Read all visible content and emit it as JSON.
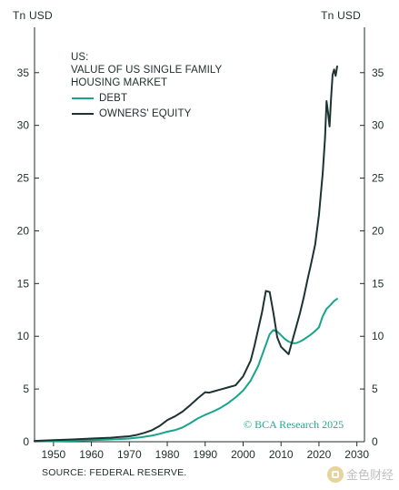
{
  "units": {
    "left": "Tn USD",
    "right": "Tn USD"
  },
  "legend": {
    "title_lines": [
      "US:",
      "VALUE OF US SINGLE FAMILY",
      "HOUSING MARKET"
    ],
    "items": [
      "DEBT",
      "OWNERS' EQUITY"
    ]
  },
  "credit": "© BCA Research 2025",
  "source": "SOURCE: FEDERAL RESERVE.",
  "watermark": "金色财经",
  "colors": {
    "debt": "#17a58b",
    "equity": "#1c3331",
    "axis": "#1f2d2a",
    "credit": "#21a98f"
  },
  "chart_data": {
    "type": "line",
    "x_ticks": [
      1950,
      1960,
      1970,
      1980,
      1990,
      2000,
      2010,
      2020,
      2030
    ],
    "y_ticks": [
      0,
      5,
      10,
      15,
      20,
      25,
      30,
      35
    ],
    "xlim": [
      1945,
      2032
    ],
    "ylim": [
      0,
      39.3
    ],
    "grid": false,
    "series": [
      {
        "name": "DEBT",
        "points": [
          [
            1945,
            0.02
          ],
          [
            1950,
            0.05
          ],
          [
            1955,
            0.1
          ],
          [
            1960,
            0.15
          ],
          [
            1965,
            0.22
          ],
          [
            1970,
            0.3
          ],
          [
            1973,
            0.42
          ],
          [
            1976,
            0.58
          ],
          [
            1978,
            0.75
          ],
          [
            1980,
            0.95
          ],
          [
            1982,
            1.1
          ],
          [
            1984,
            1.35
          ],
          [
            1986,
            1.75
          ],
          [
            1988,
            2.2
          ],
          [
            1990,
            2.55
          ],
          [
            1992,
            2.85
          ],
          [
            1994,
            3.2
          ],
          [
            1996,
            3.65
          ],
          [
            1998,
            4.2
          ],
          [
            2000,
            4.85
          ],
          [
            2002,
            5.8
          ],
          [
            2004,
            7.2
          ],
          [
            2006,
            9.2
          ],
          [
            2007,
            10.2
          ],
          [
            2008,
            10.6
          ],
          [
            2009,
            10.45
          ],
          [
            2010,
            10.1
          ],
          [
            2011,
            9.75
          ],
          [
            2012,
            9.5
          ],
          [
            2013,
            9.35
          ],
          [
            2014,
            9.35
          ],
          [
            2015,
            9.5
          ],
          [
            2016,
            9.7
          ],
          [
            2017,
            9.95
          ],
          [
            2018,
            10.2
          ],
          [
            2019,
            10.5
          ],
          [
            2020,
            10.85
          ],
          [
            2021,
            11.9
          ],
          [
            2022,
            12.6
          ],
          [
            2023,
            12.95
          ],
          [
            2024,
            13.35
          ],
          [
            2024.8,
            13.55
          ]
        ]
      },
      {
        "name": "OWNERS' EQUITY",
        "points": [
          [
            1945,
            0.08
          ],
          [
            1950,
            0.15
          ],
          [
            1955,
            0.22
          ],
          [
            1960,
            0.3
          ],
          [
            1965,
            0.38
          ],
          [
            1970,
            0.52
          ],
          [
            1972,
            0.65
          ],
          [
            1974,
            0.85
          ],
          [
            1976,
            1.1
          ],
          [
            1978,
            1.5
          ],
          [
            1980,
            2.05
          ],
          [
            1982,
            2.4
          ],
          [
            1984,
            2.85
          ],
          [
            1986,
            3.45
          ],
          [
            1988,
            4.1
          ],
          [
            1990,
            4.7
          ],
          [
            1991,
            4.65
          ],
          [
            1992,
            4.75
          ],
          [
            1994,
            4.95
          ],
          [
            1996,
            5.15
          ],
          [
            1998,
            5.35
          ],
          [
            2000,
            6.2
          ],
          [
            2002,
            7.7
          ],
          [
            2003,
            9.1
          ],
          [
            2004,
            10.7
          ],
          [
            2005,
            12.3
          ],
          [
            2006,
            14.3
          ],
          [
            2007,
            14.2
          ],
          [
            2008,
            12.2
          ],
          [
            2009,
            9.9
          ],
          [
            2010,
            9.0
          ],
          [
            2011,
            8.65
          ],
          [
            2012,
            8.3
          ],
          [
            2013,
            9.6
          ],
          [
            2014,
            10.9
          ],
          [
            2015,
            12.2
          ],
          [
            2016,
            13.7
          ],
          [
            2017,
            15.4
          ],
          [
            2018,
            17.0
          ],
          [
            2019,
            18.7
          ],
          [
            2020,
            21.5
          ],
          [
            2021,
            25.5
          ],
          [
            2021.6,
            28.8
          ],
          [
            2022,
            32.3
          ],
          [
            2022.4,
            31.2
          ],
          [
            2022.8,
            29.9
          ],
          [
            2023.2,
            32.6
          ],
          [
            2023.6,
            34.8
          ],
          [
            2024,
            35.3
          ],
          [
            2024.4,
            34.7
          ],
          [
            2024.8,
            35.6
          ]
        ]
      }
    ]
  }
}
